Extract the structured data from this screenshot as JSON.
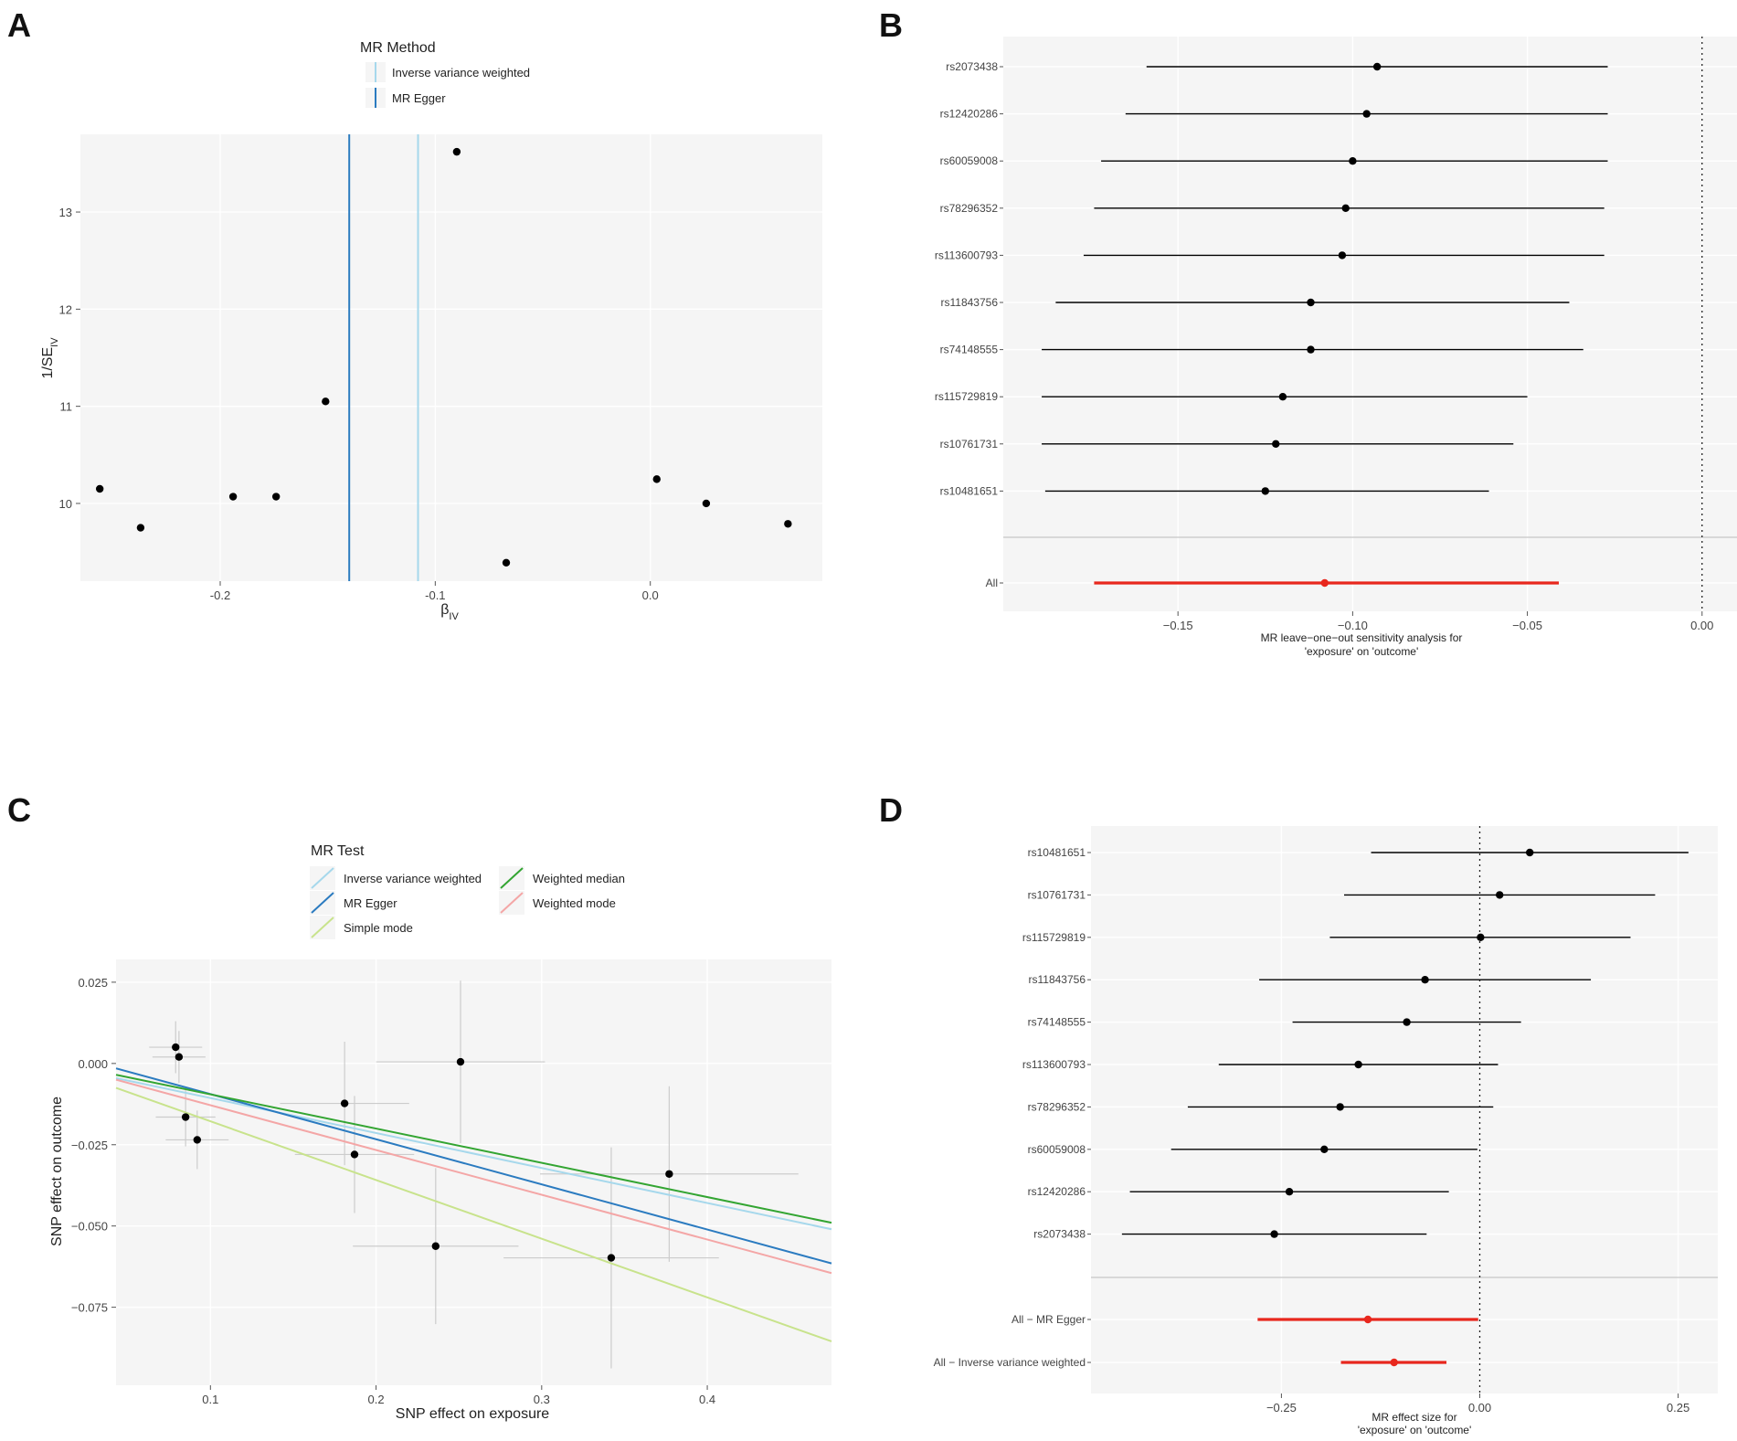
{
  "figure": {
    "panel_letters": [
      "A",
      "B",
      "C",
      "D"
    ],
    "colors": {
      "panel_bg": "#f5f5f5",
      "grid": "#ffffff",
      "ivw": "#a6d8ec",
      "egger": "#2b7bc0",
      "simple_mode": "#c8e38c",
      "weighted_median": "#33a532",
      "weighted_mode": "#f4a6a6",
      "red": "#e8271d",
      "point": "#000000",
      "errbar": "#cccccc"
    }
  },
  "chart_data": [
    {
      "panel": "A",
      "type": "scatter",
      "title": "",
      "xlabel": "β",
      "xlabel_sub": "IV",
      "ylabel": "1/SE",
      "ylabel_sub": "IV",
      "xlim": [
        -0.265,
        0.08
      ],
      "ylim": [
        9.2,
        13.8
      ],
      "xticks": [
        -0.2,
        -0.1,
        0.0
      ],
      "xtick_labels": [
        "-0.2",
        "-0.1",
        "0.0"
      ],
      "yticks": [
        10,
        11,
        12,
        13
      ],
      "ytick_labels": [
        "10",
        "11",
        "12",
        "13"
      ],
      "legend_title": "MR Method",
      "legend": [
        "Inverse variance weighted",
        "MR Egger"
      ],
      "vlines": [
        {
          "name": "Inverse variance weighted",
          "x": -0.108,
          "color_key": "ivw"
        },
        {
          "name": "MR Egger",
          "x": -0.14,
          "color_key": "egger"
        }
      ],
      "points": [
        {
          "x": -0.256,
          "y": 10.15
        },
        {
          "x": -0.237,
          "y": 9.75
        },
        {
          "x": -0.194,
          "y": 10.07
        },
        {
          "x": -0.174,
          "y": 10.07
        },
        {
          "x": -0.151,
          "y": 11.05
        },
        {
          "x": -0.09,
          "y": 13.62
        },
        {
          "x": -0.067,
          "y": 9.39
        },
        {
          "x": 0.003,
          "y": 10.25
        },
        {
          "x": 0.026,
          "y": 10.0
        },
        {
          "x": 0.064,
          "y": 9.79
        }
      ]
    },
    {
      "panel": "B",
      "type": "forest",
      "xlabel": "MR leave−one−out sensitivity analysis for",
      "xlabel2": "'exposure' on 'outcome'",
      "xlim": [
        -0.2,
        0.01
      ],
      "xticks": [
        -0.15,
        -0.1,
        -0.05,
        0.0
      ],
      "xtick_labels": [
        "−0.15",
        "−0.10",
        "−0.05",
        "0.00"
      ],
      "zero_line": 0,
      "rows": [
        {
          "label": "rs2073438",
          "est": -0.093,
          "lo": -0.159,
          "hi": -0.027
        },
        {
          "label": "rs12420286",
          "est": -0.096,
          "lo": -0.165,
          "hi": -0.027
        },
        {
          "label": "rs60059008",
          "est": -0.1,
          "lo": -0.172,
          "hi": -0.027
        },
        {
          "label": "rs78296352",
          "est": -0.102,
          "lo": -0.174,
          "hi": -0.028
        },
        {
          "label": "rs113600793",
          "est": -0.103,
          "lo": -0.177,
          "hi": -0.028
        },
        {
          "label": "rs11843756",
          "est": -0.112,
          "lo": -0.185,
          "hi": -0.038
        },
        {
          "label": "rs74148555",
          "est": -0.112,
          "lo": -0.189,
          "hi": -0.034
        },
        {
          "label": "rs115729819",
          "est": -0.12,
          "lo": -0.189,
          "hi": -0.05
        },
        {
          "label": "rs10761731",
          "est": -0.122,
          "lo": -0.189,
          "hi": -0.054
        },
        {
          "label": "rs10481651",
          "est": -0.125,
          "lo": -0.188,
          "hi": -0.061
        }
      ],
      "summary": [
        {
          "label": "All",
          "est": -0.108,
          "lo": -0.174,
          "hi": -0.041
        }
      ]
    },
    {
      "panel": "C",
      "type": "scatter",
      "xlabel": "SNP effect on exposure",
      "ylabel": "SNP effect on outcome",
      "xlim": [
        0.043,
        0.475
      ],
      "ylim": [
        -0.099,
        0.032
      ],
      "xticks": [
        0.1,
        0.2,
        0.3,
        0.4
      ],
      "xtick_labels": [
        "0.1",
        "0.2",
        "0.3",
        "0.4"
      ],
      "yticks": [
        0.025,
        0.0,
        -0.025,
        -0.05,
        -0.075
      ],
      "ytick_labels": [
        "0.025",
        "0.000",
        "−0.025",
        "−0.050",
        "−0.075"
      ],
      "legend_title": "MR Test",
      "legend": [
        "Inverse variance weighted",
        "MR Egger",
        "Simple mode",
        "Weighted median",
        "Weighted mode"
      ],
      "lines": [
        {
          "name": "Inverse variance weighted",
          "color_key": "ivw",
          "x0": 0.043,
          "y0": -0.0045,
          "x1": 0.475,
          "y1": -0.051
        },
        {
          "name": "MR Egger",
          "color_key": "egger",
          "x0": 0.043,
          "y0": -0.0015,
          "x1": 0.475,
          "y1": -0.0615
        },
        {
          "name": "Simple mode",
          "color_key": "simple_mode",
          "x0": 0.043,
          "y0": -0.0075,
          "x1": 0.475,
          "y1": -0.0855
        },
        {
          "name": "Weighted median",
          "color_key": "weighted_median",
          "x0": 0.043,
          "y0": -0.0035,
          "x1": 0.475,
          "y1": -0.049
        },
        {
          "name": "Weighted mode",
          "color_key": "weighted_mode",
          "x0": 0.043,
          "y0": -0.005,
          "x1": 0.475,
          "y1": -0.0645
        }
      ],
      "points": [
        {
          "x": 0.079,
          "y": 0.005,
          "xerr": 0.016,
          "yerr": 0.008
        },
        {
          "x": 0.081,
          "y": 0.002,
          "xerr": 0.016,
          "yerr": 0.008
        },
        {
          "x": 0.085,
          "y": -0.0165,
          "xerr": 0.018,
          "yerr": 0.009
        },
        {
          "x": 0.092,
          "y": -0.0235,
          "xerr": 0.019,
          "yerr": 0.009
        },
        {
          "x": 0.181,
          "y": -0.0123,
          "xerr": 0.039,
          "yerr": 0.019
        },
        {
          "x": 0.187,
          "y": -0.028,
          "xerr": 0.036,
          "yerr": 0.018
        },
        {
          "x": 0.236,
          "y": -0.0562,
          "xerr": 0.05,
          "yerr": 0.024
        },
        {
          "x": 0.251,
          "y": 0.0005,
          "xerr": 0.051,
          "yerr": 0.025
        },
        {
          "x": 0.342,
          "y": -0.0598,
          "xerr": 0.065,
          "yerr": 0.034
        },
        {
          "x": 0.377,
          "y": -0.034,
          "xerr": 0.078,
          "yerr": 0.027
        }
      ]
    },
    {
      "panel": "D",
      "type": "forest",
      "xlabel": "MR effect size for",
      "xlabel2": "'exposure' on 'outcome'",
      "xlim": [
        -0.49,
        0.3
      ],
      "xticks": [
        -0.25,
        0.0,
        0.25
      ],
      "xtick_labels": [
        "−0.25",
        "0.00",
        "0.25"
      ],
      "zero_line": 0,
      "rows": [
        {
          "label": "rs10481651",
          "est": 0.063,
          "lo": -0.137,
          "hi": 0.263
        },
        {
          "label": "rs10761731",
          "est": 0.025,
          "lo": -0.171,
          "hi": 0.221
        },
        {
          "label": "rs115729819",
          "est": 0.001,
          "lo": -0.189,
          "hi": 0.19
        },
        {
          "label": "rs11843756",
          "est": -0.069,
          "lo": -0.278,
          "hi": 0.14
        },
        {
          "label": "rs74148555",
          "est": -0.092,
          "lo": -0.236,
          "hi": 0.052
        },
        {
          "label": "rs113600793",
          "est": -0.153,
          "lo": -0.329,
          "hi": 0.023
        },
        {
          "label": "rs78296352",
          "est": -0.176,
          "lo": -0.368,
          "hi": 0.017
        },
        {
          "label": "rs60059008",
          "est": -0.196,
          "lo": -0.389,
          "hi": -0.003
        },
        {
          "label": "rs12420286",
          "est": -0.24,
          "lo": -0.441,
          "hi": -0.039
        },
        {
          "label": "rs2073438",
          "est": -0.259,
          "lo": -0.451,
          "hi": -0.067
        }
      ],
      "summary": [
        {
          "label": "All − MR Egger",
          "est": -0.141,
          "lo": -0.28,
          "hi": -0.002
        },
        {
          "label": "All − Inverse variance weighted",
          "est": -0.108,
          "lo": -0.175,
          "hi": -0.042
        }
      ]
    }
  ]
}
